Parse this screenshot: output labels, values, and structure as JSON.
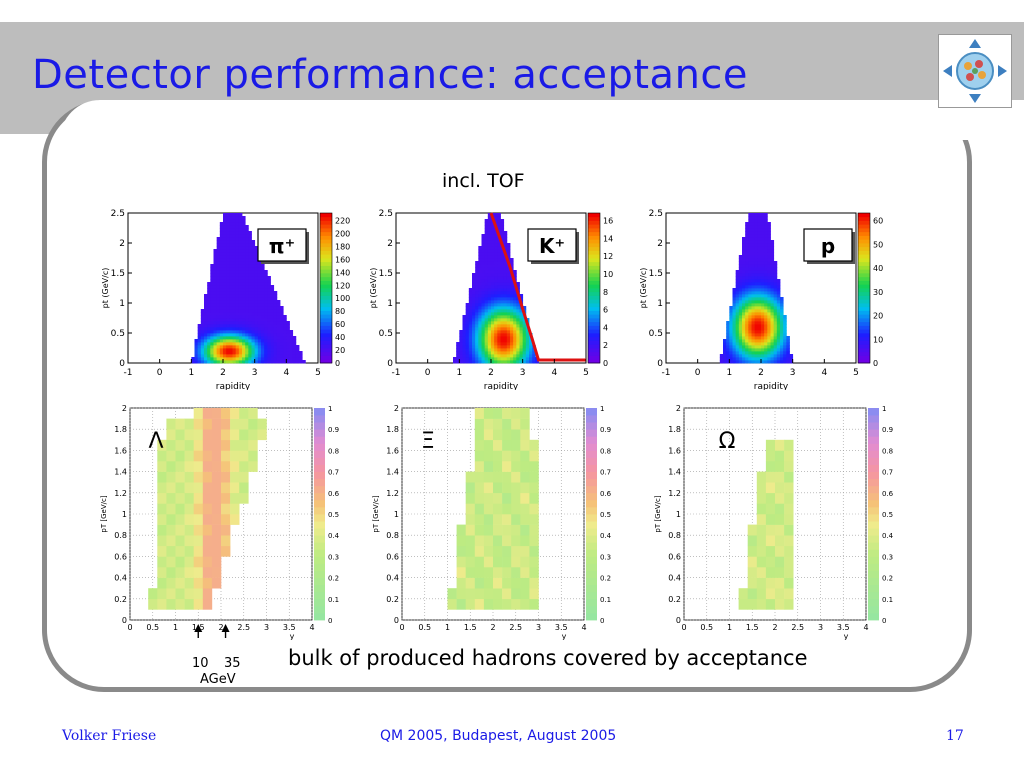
{
  "slide": {
    "title": "Detector performance: acceptance",
    "caption_top": "incl. TOF",
    "caption_bottom": "bulk of produced hadrons covered by acceptance",
    "arrow_labels": [
      "10",
      "35"
    ],
    "arrow_unit": "AGeV"
  },
  "footer": {
    "author": "Volker Friese",
    "conference": "QM 2005, Budapest, August 2005",
    "page": "17"
  },
  "colors": {
    "title": "#1a1ae6",
    "frame": "#8a8a8a",
    "band": "#bdbdbd",
    "kaon_curve": "#dd1111"
  },
  "chart_data": [
    {
      "type": "heatmap",
      "particle": "π⁺",
      "xlabel": "rapidity",
      "ylabel": "pt (GeV/c)",
      "xlim": [
        -1,
        5
      ],
      "ylim": [
        0,
        2.5
      ],
      "x_ticks": [
        "-1",
        "0",
        "1",
        "2",
        "3",
        "4",
        "5"
      ],
      "y_ticks": [
        "0",
        "0.5",
        "1",
        "1.5",
        "2",
        "2.5"
      ],
      "colorbar_ticks": [
        "0",
        "20",
        "40",
        "60",
        "80",
        "100",
        "120",
        "140",
        "160",
        "180",
        "200",
        "220"
      ],
      "peak": {
        "x": 2.2,
        "y": 0.2
      },
      "region": [
        [
          1.0,
          0.0
        ],
        [
          4.6,
          0.0
        ],
        [
          2.6,
          2.5
        ],
        [
          2.0,
          2.5
        ]
      ]
    },
    {
      "type": "heatmap",
      "particle": "K⁺",
      "xlabel": "rapidity",
      "ylabel": "pt (GeV/c)",
      "xlim": [
        -1,
        5
      ],
      "ylim": [
        0,
        2.5
      ],
      "x_ticks": [
        "-1",
        "0",
        "1",
        "2",
        "3",
        "4",
        "5"
      ],
      "y_ticks": [
        "0",
        "0.5",
        "1",
        "1.5",
        "2",
        "2.5"
      ],
      "colorbar_ticks": [
        "0",
        "2",
        "4",
        "6",
        "8",
        "10",
        "12",
        "14",
        "16"
      ],
      "peak": {
        "x": 2.4,
        "y": 0.4
      },
      "region": [
        [
          0.8,
          0.0
        ],
        [
          3.5,
          0.0
        ],
        [
          2.3,
          2.5
        ],
        [
          1.9,
          2.5
        ]
      ],
      "curve": [
        [
          2.0,
          2.5
        ],
        [
          2.6,
          1.6
        ],
        [
          3.0,
          0.9
        ],
        [
          3.3,
          0.4
        ],
        [
          3.5,
          0.05
        ],
        [
          5.0,
          0.05
        ]
      ]
    },
    {
      "type": "heatmap",
      "particle": "p",
      "xlabel": "rapidity",
      "ylabel": "pt (GeV/c)",
      "xlim": [
        -1,
        5
      ],
      "ylim": [
        0,
        2.5
      ],
      "x_ticks": [
        "-1",
        "0",
        "1",
        "2",
        "3",
        "4",
        "5"
      ],
      "y_ticks": [
        "0",
        "0.5",
        "1",
        "1.5",
        "2",
        "2.5"
      ],
      "colorbar_ticks": [
        "0",
        "10",
        "20",
        "30",
        "40",
        "50",
        "60"
      ],
      "peak": {
        "x": 1.9,
        "y": 0.6
      },
      "region": [
        [
          0.7,
          0.0
        ],
        [
          3.0,
          0.0
        ],
        [
          2.2,
          2.5
        ],
        [
          1.6,
          2.5
        ]
      ]
    },
    {
      "type": "heatmap",
      "particle": "Λ",
      "xlabel": "y",
      "ylabel": "pT [GeV/c]",
      "xlim": [
        0,
        4
      ],
      "ylim": [
        0,
        2
      ],
      "x_ticks": [
        "0",
        "0.5",
        "1",
        "1.5",
        "2",
        "2.5",
        "3",
        "3.5",
        "4"
      ],
      "y_ticks": [
        "0",
        "0.2",
        "0.4",
        "0.6",
        "0.8",
        "1",
        "1.2",
        "1.4",
        "1.6",
        "1.8",
        "2"
      ],
      "colorbar_ticks": [
        "0",
        "0.1",
        "0.2",
        "0.3",
        "0.4",
        "0.5",
        "0.6",
        "0.7",
        "0.8",
        "0.9",
        "1"
      ],
      "arrows_y": [
        1.5,
        2.1
      ]
    },
    {
      "type": "heatmap",
      "particle": "Ξ",
      "xlabel": "y",
      "ylabel": "pT [GeV/c]",
      "xlim": [
        0,
        4
      ],
      "ylim": [
        0,
        2
      ],
      "x_ticks": [
        "0",
        "0.5",
        "1",
        "1.5",
        "2",
        "2.5",
        "3",
        "3.5",
        "4"
      ],
      "y_ticks": [
        "0",
        "0.2",
        "0.4",
        "0.6",
        "0.8",
        "1",
        "1.2",
        "1.4",
        "1.6",
        "1.8",
        "2"
      ],
      "colorbar_ticks": [
        "0",
        "0.1",
        "0.2",
        "0.3",
        "0.4",
        "0.5",
        "0.6",
        "0.7",
        "0.8",
        "0.9",
        "1"
      ]
    },
    {
      "type": "heatmap",
      "particle": "Ω",
      "xlabel": "y",
      "ylabel": "pT [GeV/c]",
      "xlim": [
        0,
        4
      ],
      "ylim": [
        0,
        2
      ],
      "x_ticks": [
        "0",
        "0.5",
        "1",
        "1.5",
        "2",
        "2.5",
        "3",
        "3.5",
        "4"
      ],
      "y_ticks": [
        "0",
        "0.2",
        "0.4",
        "0.6",
        "0.8",
        "1",
        "1.2",
        "1.4",
        "1.6",
        "1.8",
        "2"
      ],
      "colorbar_ticks": [
        "0",
        "0.1",
        "0.2",
        "0.3",
        "0.4",
        "0.5",
        "0.6",
        "0.7",
        "0.8",
        "0.9",
        "1"
      ]
    }
  ]
}
